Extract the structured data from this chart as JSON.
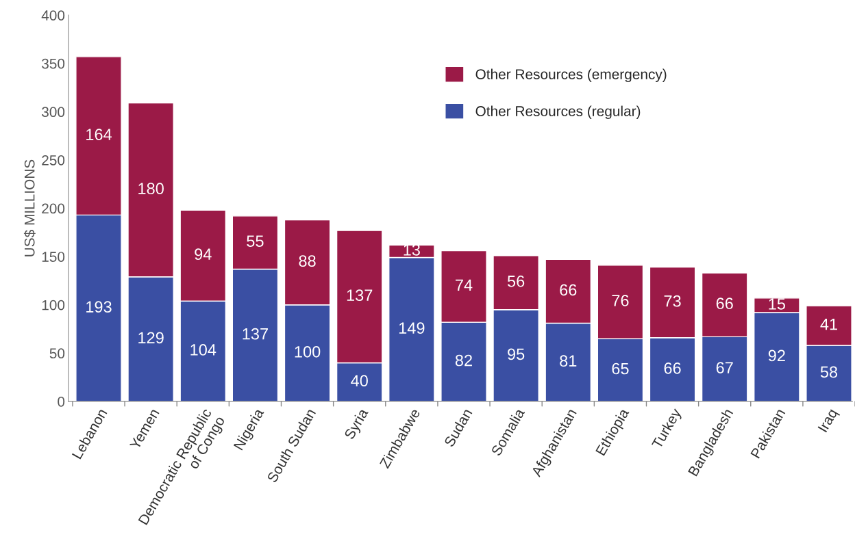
{
  "chart_data": {
    "type": "bar",
    "stacked": true,
    "ylabel": "US$ MILLIONS",
    "categories": [
      "Lebanon",
      "Yemen",
      "Democratic Republic\nof Congo",
      "Nigeria",
      "South Sudan",
      "Syria",
      "Zimbabwe",
      "Sudan",
      "Somalia",
      "Afghanistan",
      "Ethiopia",
      "Turkey",
      "Bangladesh",
      "Pakistan",
      "Iraq"
    ],
    "series": [
      {
        "name": "Other Resources (regular)",
        "color": "#3a4fa3",
        "values": [
          193,
          129,
          104,
          137,
          100,
          40,
          149,
          82,
          95,
          81,
          65,
          66,
          67,
          92,
          58
        ]
      },
      {
        "name": "Other Resources (emergency)",
        "color": "#9b1a47",
        "values": [
          164,
          180,
          94,
          55,
          88,
          137,
          13,
          74,
          56,
          66,
          76,
          73,
          66,
          15,
          41
        ]
      }
    ],
    "ylim": [
      0,
      400
    ],
    "yticks": [
      0,
      50,
      100,
      150,
      200,
      250,
      300,
      350,
      400
    ],
    "data_labels": true,
    "legend": "top right",
    "grid": false
  }
}
